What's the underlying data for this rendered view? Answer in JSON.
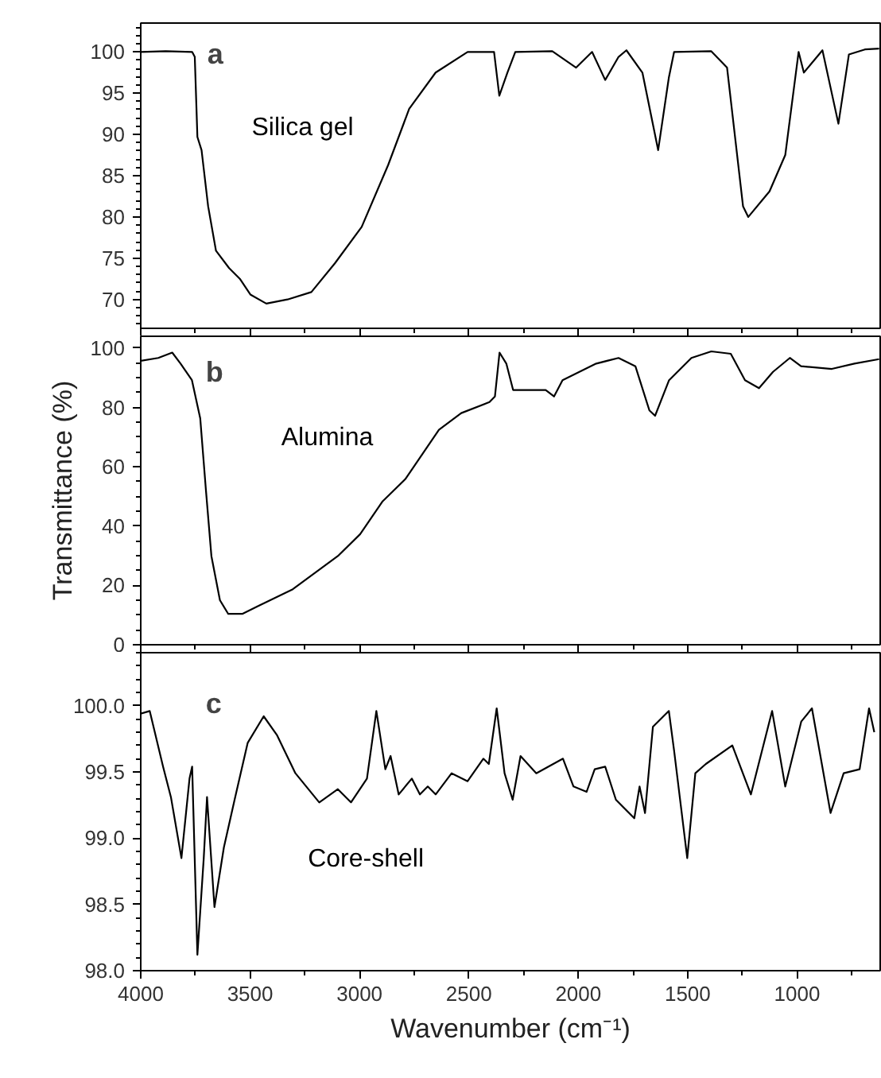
{
  "chart_data": [
    {
      "type": "line",
      "title": "a",
      "xlim": [
        4000,
        620
      ],
      "xticks": [
        4000,
        3500,
        3000,
        2500,
        2000,
        1500,
        1000
      ],
      "ylim": [
        66.5,
        103.5
      ],
      "yticks": [
        70,
        75,
        80,
        85,
        90,
        95,
        100
      ],
      "tick_labels": "y",
      "grid": false,
      "series": [
        {
          "name": "Silica gel",
          "color": "#000000",
          "x": [
            4000,
            3886,
            3765,
            3753,
            3741,
            3722,
            3692,
            3656,
            3596,
            3547,
            3499,
            3426,
            3329,
            3220,
            3112,
            2990,
            2869,
            2773,
            2652,
            2506,
            2385,
            2361,
            2324,
            2288,
            2119,
            2010,
            1937,
            1877,
            1816,
            1780,
            1707,
            1635,
            1586,
            1562,
            1393,
            1320,
            1247,
            1223,
            1126,
            1054,
            993,
            969,
            884,
            811,
            763,
            690,
            625
          ],
          "values": [
            100,
            100.1,
            100,
            99.4,
            89.7,
            88.1,
            81.3,
            75.9,
            73.8,
            72.5,
            70.6,
            69.5,
            70,
            70.9,
            74.4,
            78.8,
            86.3,
            93.1,
            97.5,
            100,
            100,
            94.7,
            97.5,
            100,
            100.1,
            98.1,
            100,
            96.6,
            99.4,
            100.2,
            97.5,
            88.1,
            96.9,
            100,
            100.1,
            98.1,
            81.3,
            80,
            83.1,
            87.5,
            100,
            97.5,
            100.2,
            91.3,
            99.7,
            100.3,
            100.4
          ]
        }
      ]
    },
    {
      "type": "line",
      "title": "b",
      "ylabel": "Transmittance (%)",
      "xlim": [
        4000,
        620
      ],
      "xticks": [
        4000,
        3500,
        3000,
        2500,
        2000,
        1500,
        1000
      ],
      "ylim": [
        0,
        104
      ],
      "yticks": [
        0,
        20,
        40,
        60,
        80,
        100
      ],
      "tick_labels": "y",
      "grid": false,
      "series": [
        {
          "name": "Alumina",
          "color": "#000000",
          "x": [
            4000,
            3920,
            3856,
            3818,
            3766,
            3728,
            3702,
            3677,
            3638,
            3600,
            3536,
            3459,
            3305,
            3099,
            2997,
            2894,
            2791,
            2637,
            2535,
            2406,
            2381,
            2360,
            2329,
            2298,
            2149,
            2111,
            2072,
            1918,
            1816,
            1739,
            1675,
            1649,
            1585,
            1483,
            1392,
            1303,
            1238,
            1174,
            1110,
            1033,
            982,
            841,
            738,
            625
          ],
          "values": [
            95.7,
            96.7,
            98.5,
            94.8,
            89.2,
            76.3,
            52.1,
            29.9,
            15,
            10.4,
            10.4,
            13.2,
            18.7,
            29.9,
            37.3,
            48.4,
            55.8,
            72.5,
            78.1,
            81.8,
            83.7,
            98.5,
            94.8,
            85.9,
            85.9,
            83.7,
            89.2,
            94.8,
            96.7,
            93.9,
            79,
            77.2,
            89.2,
            96.7,
            98.9,
            98.1,
            89.2,
            86.5,
            92,
            96.7,
            93.9,
            93,
            94.8,
            96.3
          ]
        }
      ]
    },
    {
      "type": "line",
      "title": "c",
      "xlabel": "Wavenumber (cm⁻¹)",
      "xlim": [
        4000,
        620
      ],
      "xticks": [
        4000,
        3500,
        3000,
        2500,
        2000,
        1500,
        1000
      ],
      "ylim": [
        98.0,
        100.4
      ],
      "yticks": [
        {
          "value": 98,
          "label": "98.0"
        },
        98.5,
        {
          "value": 99,
          "label": "99.0"
        },
        99.5,
        {
          "value": 100,
          "label": "100.0"
        }
      ],
      "grid": false,
      "series": [
        {
          "name": "Core-shell",
          "color": "#000000",
          "x": [
            4000,
            3959,
            3898,
            3862,
            3814,
            3777,
            3765,
            3741,
            3712,
            3697,
            3663,
            3620,
            3571,
            3511,
            3438,
            3378,
            3293,
            3184,
            3099,
            3039,
            2966,
            2923,
            2882,
            2858,
            2821,
            2761,
            2724,
            2688,
            2652,
            2579,
            2506,
            2434,
            2409,
            2373,
            2337,
            2300,
            2264,
            2192,
            2070,
            2022,
            1962,
            1925,
            1877,
            1828,
            1744,
            1720,
            1695,
            1659,
            1586,
            1562,
            1502,
            1465,
            1417,
            1296,
            1211,
            1114,
            1054,
            981,
            932,
            847,
            787,
            714,
            671,
            647
          ],
          "values": [
            99.94,
            99.96,
            99.54,
            99.31,
            98.85,
            99.45,
            99.54,
            98.12,
            98.85,
            99.31,
            98.48,
            98.93,
            99.29,
            99.72,
            99.92,
            99.78,
            99.49,
            99.27,
            99.37,
            99.27,
            99.45,
            99.96,
            99.52,
            99.62,
            99.33,
            99.45,
            99.33,
            99.39,
            99.33,
            99.49,
            99.43,
            99.6,
            99.56,
            99.98,
            99.49,
            99.29,
            99.62,
            99.49,
            99.6,
            99.39,
            99.35,
            99.52,
            99.54,
            99.29,
            99.15,
            99.39,
            99.19,
            99.84,
            99.96,
            99.66,
            98.85,
            99.49,
            99.56,
            99.7,
            99.33,
            99.96,
            99.39,
            99.88,
            99.98,
            99.19,
            99.49,
            99.52,
            99.98,
            99.8
          ]
        }
      ]
    }
  ]
}
